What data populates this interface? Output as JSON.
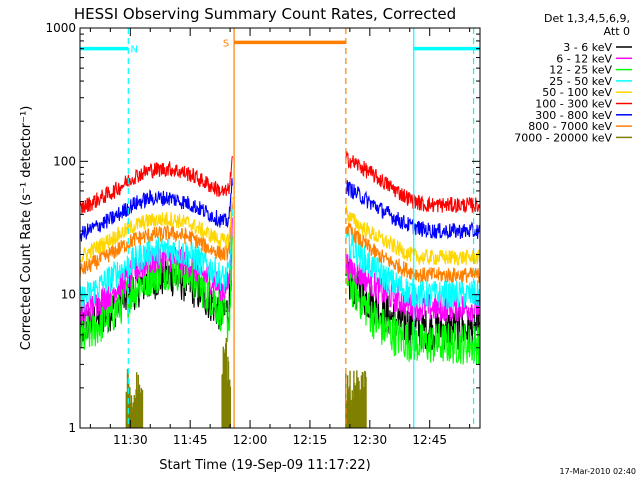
{
  "chart_data": {
    "type": "line",
    "title": "HESSI Observing Summary Count Rates, Corrected",
    "xlabel": "Start Time (19-Sep-09 11:17:22)",
    "ylabel": "Corrected Count Rate (s⁻¹ detector⁻¹)",
    "yscale": "log",
    "ylim": [
      1,
      1000
    ],
    "xlim_minutes": [
      677.4,
      777.6
    ],
    "x_ticks": [
      {
        "t": 690,
        "label": "11:30"
      },
      {
        "t": 705,
        "label": "11:45"
      },
      {
        "t": 720,
        "label": "12:00"
      },
      {
        "t": 735,
        "label": "12:15"
      },
      {
        "t": 750,
        "label": "12:30"
      },
      {
        "t": 765,
        "label": "12:45"
      }
    ],
    "y_ticks": [
      {
        "v": 1,
        "label": "1"
      },
      {
        "v": 10,
        "label": "10"
      },
      {
        "v": 100,
        "label": "100"
      },
      {
        "v": 1000,
        "label": "1000"
      }
    ],
    "legend_header": [
      "Det 1,3,4,5,6,9,",
      "Att 0"
    ],
    "legend_position": "right",
    "series": [
      {
        "name": "3 - 6 keV",
        "color": "#000000",
        "x": [
          677.4,
          686,
          691,
          695,
          700,
          705,
          710,
          713.5,
          714.5,
          715.0,
          715.5,
          744,
          745,
          748,
          752,
          756,
          760,
          763,
          766,
          770,
          775
        ],
        "y": [
          5.5,
          8,
          11,
          13,
          14,
          12,
          9,
          7,
          8,
          10,
          30,
          13,
          12,
          10,
          8,
          6.5,
          5.8,
          5.5,
          5.5,
          5.5,
          5.5
        ]
      },
      {
        "name": "6 - 12 keV",
        "color": "#ff00ff",
        "x": [
          677.4,
          686,
          691,
          695,
          700,
          705,
          710,
          713.5,
          714.5,
          715.0,
          715.5,
          744,
          745,
          748,
          752,
          756,
          760,
          763,
          766,
          770,
          775
        ],
        "y": [
          7,
          11,
          15,
          18,
          19,
          17,
          13,
          11,
          12,
          15,
          40,
          17,
          16,
          14,
          11,
          9.5,
          8.5,
          8,
          8,
          8,
          8
        ]
      },
      {
        "name": "12 - 25 keV",
        "color": "#00ff00",
        "x": [
          677.4,
          686,
          691,
          695,
          700,
          705,
          710,
          713.5,
          714.5,
          715.0,
          715.5,
          744,
          745,
          748,
          752,
          756,
          760,
          763,
          766,
          770,
          775
        ],
        "y": [
          4.5,
          7.5,
          11,
          14,
          16,
          14,
          10,
          7,
          6,
          8,
          25,
          14,
          12,
          9,
          6,
          5,
          4.5,
          4.3,
          4.3,
          4.3,
          4.3
        ]
      },
      {
        "name": "25 - 50 keV",
        "color": "#00ffff",
        "x": [
          677.4,
          686,
          691,
          695,
          700,
          705,
          710,
          713.5,
          714.5,
          715.0,
          715.5,
          744,
          745,
          748,
          752,
          756,
          760,
          763,
          766,
          770,
          775
        ],
        "y": [
          9,
          14,
          18,
          21,
          22,
          20,
          16,
          13,
          14,
          17,
          45,
          26,
          24,
          19,
          15,
          12,
          10.5,
          10,
          10,
          10,
          10
        ]
      },
      {
        "name": "50 - 100 keV",
        "color": "#ffd700",
        "x": [
          677.4,
          686,
          691,
          695,
          700,
          705,
          710,
          713.5,
          714.5,
          715.0,
          715.5,
          744,
          745,
          748,
          752,
          756,
          760,
          763,
          766,
          770,
          775
        ],
        "y": [
          19,
          27,
          33,
          36,
          37,
          34,
          28,
          25,
          26,
          30,
          60,
          42,
          38,
          32,
          27,
          23,
          20,
          19,
          19,
          19,
          19
        ]
      },
      {
        "name": "100 - 300 keV",
        "color": "#ff0000",
        "x": [
          677.4,
          686,
          691,
          695,
          700,
          705,
          710,
          713.5,
          714.5,
          715.0,
          715.5,
          744,
          745,
          748,
          752,
          756,
          760,
          763,
          766,
          770,
          775
        ],
        "y": [
          44,
          60,
          77,
          86,
          88,
          80,
          66,
          58,
          60,
          70,
          100,
          105,
          102,
          90,
          75,
          62,
          52,
          48,
          47,
          47,
          47
        ]
      },
      {
        "name": "300 - 800 keV",
        "color": "#0000ff",
        "x": [
          677.4,
          686,
          691,
          695,
          700,
          705,
          710,
          713.5,
          714.5,
          715.0,
          715.5,
          744,
          745,
          748,
          752,
          756,
          760,
          763,
          766,
          770,
          775
        ],
        "y": [
          28,
          38,
          48,
          53,
          53,
          48,
          40,
          35,
          36,
          42,
          75,
          65,
          62,
          54,
          45,
          38,
          33,
          31,
          30,
          30,
          30
        ]
      },
      {
        "name": "800 - 7000 keV",
        "color": "#ff8000",
        "x": [
          677.4,
          686,
          691,
          695,
          700,
          705,
          710,
          713.5,
          714.5,
          715.0,
          715.5,
          744,
          745,
          748,
          752,
          756,
          760,
          763,
          766,
          770,
          775
        ],
        "y": [
          15,
          21,
          26,
          28,
          29,
          27,
          22,
          20,
          21,
          24,
          50,
          32,
          30,
          25,
          20,
          17,
          15,
          14,
          14,
          14,
          14
        ]
      },
      {
        "name": "7000 - 20000 keV",
        "color": "#808000",
        "x": [
          689,
          690,
          691,
          692,
          713,
          714,
          744,
          745,
          746,
          747,
          748
        ],
        "y": [
          2,
          1.5,
          2,
          1.8,
          3.5,
          2.5,
          2,
          1.6,
          2,
          1.8,
          2
        ]
      }
    ],
    "annotations": {
      "top_bars": [
        {
          "label": "",
          "color": "#00ffff",
          "start": 677.4,
          "end": 689.5,
          "y": 700
        },
        {
          "label": "N",
          "color": "#00ffff",
          "start": 689.5,
          "end": 689.5,
          "y": 700
        },
        {
          "label": "S",
          "color": "#ff8000",
          "start": 716.0,
          "end": 716.0,
          "y": 780
        },
        {
          "label": "",
          "color": "#ff8000",
          "start": 716.0,
          "end": 744.0,
          "y": 780
        },
        {
          "label": "",
          "color": "#00ffff",
          "start": 761.0,
          "end": 777.6,
          "y": 700
        }
      ],
      "vlines": [
        {
          "t": 689.5,
          "color": "#00ffff",
          "style": "dashed"
        },
        {
          "t": 716.0,
          "color": "#ff8000",
          "style": "solid"
        },
        {
          "t": 744.0,
          "color": "#ff8000",
          "style": "dashed"
        },
        {
          "t": 761.0,
          "color": "#00ffff",
          "style": "solid"
        },
        {
          "t": 776.0,
          "color": "#00ffff",
          "style": "dashed"
        }
      ],
      "data_gap": [
        715.6,
        743.9
      ]
    },
    "footer_timestamp": "17-Mar-2010 02:40",
    "grid": false
  }
}
